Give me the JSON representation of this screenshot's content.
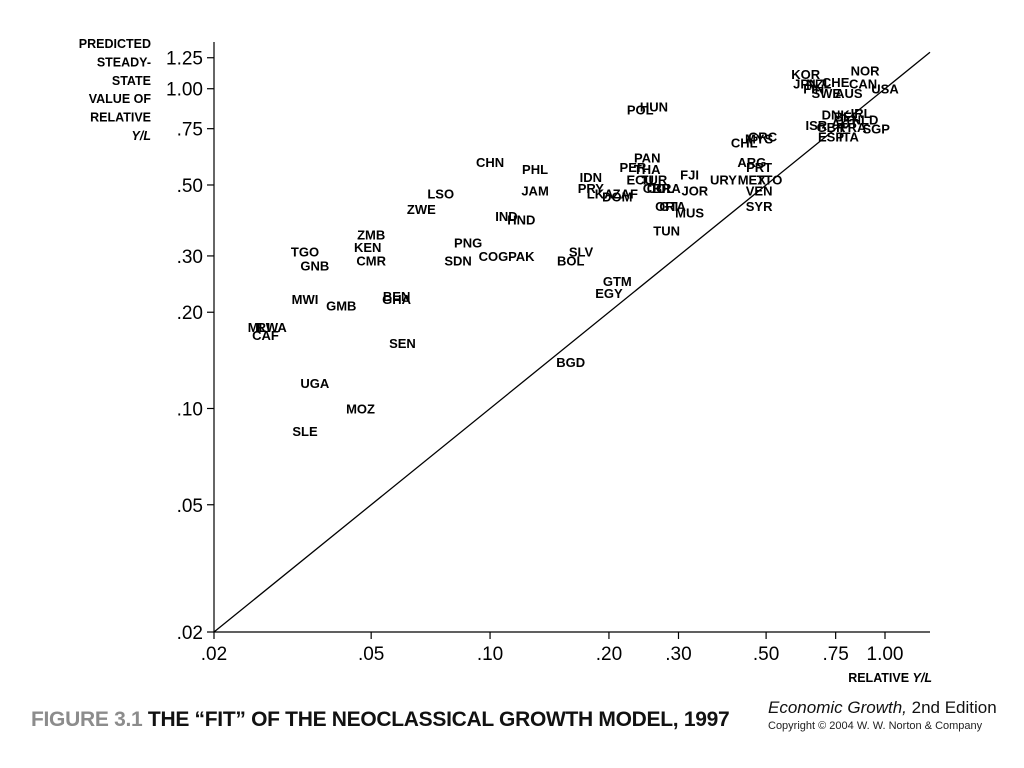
{
  "figure": {
    "label": "FIGURE 3.1",
    "title": "THE “FIT” OF THE NEOCLASSICAL GROWTH MODEL, 1997"
  },
  "credit": {
    "book_title": "Economic Growth,",
    "edition": " 2nd Edition",
    "copyright": "Copyright © 2004 W. W. Norton & Company"
  },
  "chart_data": {
    "type": "scatter",
    "scale": "log",
    "xlim": [
      0.02,
      1.3
    ],
    "ylim": [
      0.02,
      1.4
    ],
    "xlabel": [
      "RELATIVE ",
      "Y/L"
    ],
    "ylabel": [
      "PREDICTED",
      "STEADY-",
      "STATE",
      "VALUE OF",
      "RELATIVE",
      "Y/L"
    ],
    "x_ticks": [
      {
        "value": 0.02,
        "label": ".02"
      },
      {
        "value": 0.05,
        "label": ".05"
      },
      {
        "value": 0.1,
        "label": ".10"
      },
      {
        "value": 0.2,
        "label": ".20"
      },
      {
        "value": 0.3,
        "label": ".30"
      },
      {
        "value": 0.5,
        "label": ".50"
      },
      {
        "value": 0.75,
        "label": ".75"
      },
      {
        "value": 1.0,
        "label": "1.00"
      }
    ],
    "y_ticks": [
      {
        "value": 0.02,
        "label": ".02"
      },
      {
        "value": 0.05,
        "label": ".05"
      },
      {
        "value": 0.1,
        "label": ".10"
      },
      {
        "value": 0.2,
        "label": ".20"
      },
      {
        "value": 0.3,
        "label": ".30"
      },
      {
        "value": 0.5,
        "label": ".50"
      },
      {
        "value": 0.75,
        "label": ".75"
      },
      {
        "value": 1.0,
        "label": "1.00"
      },
      {
        "value": 1.25,
        "label": "1.25"
      }
    ],
    "reference_line": {
      "from": [
        0.02,
        0.02
      ],
      "to": [
        1.3,
        1.3
      ]
    },
    "points": [
      {
        "label": "NOR",
        "x": 0.89,
        "y": 1.14
      },
      {
        "label": "KOR",
        "x": 0.63,
        "y": 1.11
      },
      {
        "label": "JPN",
        "x": 0.63,
        "y": 1.04
      },
      {
        "label": "NZL",
        "x": 0.68,
        "y": 1.04
      },
      {
        "label": "CHE",
        "x": 0.75,
        "y": 1.05
      },
      {
        "label": "CAN",
        "x": 0.88,
        "y": 1.04
      },
      {
        "label": "USA",
        "x": 1.0,
        "y": 1.0
      },
      {
        "label": "FIN",
        "x": 0.66,
        "y": 1.0
      },
      {
        "label": "SWE",
        "x": 0.71,
        "y": 0.97
      },
      {
        "label": "AUS",
        "x": 0.81,
        "y": 0.97
      },
      {
        "label": "DNK",
        "x": 0.75,
        "y": 0.83
      },
      {
        "label": "BEL",
        "x": 0.8,
        "y": 0.82
      },
      {
        "label": "IRL",
        "x": 0.87,
        "y": 0.84
      },
      {
        "label": "ISR",
        "x": 0.67,
        "y": 0.77
      },
      {
        "label": "GBR",
        "x": 0.73,
        "y": 0.76
      },
      {
        "label": "NLD",
        "x": 0.89,
        "y": 0.8
      },
      {
        "label": "FRA",
        "x": 0.83,
        "y": 0.76
      },
      {
        "label": "AUT",
        "x": 0.79,
        "y": 0.78
      },
      {
        "label": "SGP",
        "x": 0.95,
        "y": 0.75
      },
      {
        "label": "ESP",
        "x": 0.73,
        "y": 0.71
      },
      {
        "label": "ITA",
        "x": 0.81,
        "y": 0.71
      },
      {
        "label": "HUN",
        "x": 0.26,
        "y": 0.88
      },
      {
        "label": "POL",
        "x": 0.24,
        "y": 0.86
      },
      {
        "label": "GRC",
        "x": 0.49,
        "y": 0.71
      },
      {
        "label": "MYS",
        "x": 0.48,
        "y": 0.7
      },
      {
        "label": "CHL",
        "x": 0.44,
        "y": 0.68
      },
      {
        "label": "PAN",
        "x": 0.25,
        "y": 0.61
      },
      {
        "label": "ARG",
        "x": 0.46,
        "y": 0.59
      },
      {
        "label": "PRT",
        "x": 0.48,
        "y": 0.57
      },
      {
        "label": "PER",
        "x": 0.23,
        "y": 0.57
      },
      {
        "label": "THA",
        "x": 0.25,
        "y": 0.56
      },
      {
        "label": "CHN",
        "x": 0.1,
        "y": 0.59
      },
      {
        "label": "PHL",
        "x": 0.13,
        "y": 0.56
      },
      {
        "label": "IDN",
        "x": 0.18,
        "y": 0.53
      },
      {
        "label": "FJI",
        "x": 0.32,
        "y": 0.54
      },
      {
        "label": "URY",
        "x": 0.39,
        "y": 0.52
      },
      {
        "label": "MEX",
        "x": 0.46,
        "y": 0.52
      },
      {
        "label": "TTO",
        "x": 0.51,
        "y": 0.52
      },
      {
        "label": "ECU",
        "x": 0.24,
        "y": 0.52
      },
      {
        "label": "TUR",
        "x": 0.26,
        "y": 0.52
      },
      {
        "label": "COL",
        "x": 0.27,
        "y": 0.49
      },
      {
        "label": "CRI",
        "x": 0.26,
        "y": 0.49
      },
      {
        "label": "BRA",
        "x": 0.28,
        "y": 0.49
      },
      {
        "label": "JOR",
        "x": 0.33,
        "y": 0.48
      },
      {
        "label": "VEN",
        "x": 0.48,
        "y": 0.48
      },
      {
        "label": "PRY",
        "x": 0.18,
        "y": 0.49
      },
      {
        "label": "LKA",
        "x": 0.19,
        "y": 0.47
      },
      {
        "label": "ZAF",
        "x": 0.22,
        "y": 0.47
      },
      {
        "label": "DOM",
        "x": 0.21,
        "y": 0.46
      },
      {
        "label": "JAM",
        "x": 0.13,
        "y": 0.48
      },
      {
        "label": "SYR",
        "x": 0.48,
        "y": 0.43
      },
      {
        "label": "GTA",
        "x": 0.29,
        "y": 0.43
      },
      {
        "label": "ORI",
        "x": 0.28,
        "y": 0.43
      },
      {
        "label": "MUS",
        "x": 0.32,
        "y": 0.41
      },
      {
        "label": "LSO",
        "x": 0.075,
        "y": 0.47
      },
      {
        "label": "ZWE",
        "x": 0.067,
        "y": 0.42
      },
      {
        "label": "IND",
        "x": 0.11,
        "y": 0.4
      },
      {
        "label": "HND",
        "x": 0.12,
        "y": 0.39
      },
      {
        "label": "TUN",
        "x": 0.28,
        "y": 0.36
      },
      {
        "label": "ZMB",
        "x": 0.05,
        "y": 0.35
      },
      {
        "label": "KEN",
        "x": 0.049,
        "y": 0.32
      },
      {
        "label": "PNG",
        "x": 0.088,
        "y": 0.33
      },
      {
        "label": "TGO",
        "x": 0.034,
        "y": 0.31
      },
      {
        "label": "CMR",
        "x": 0.05,
        "y": 0.29
      },
      {
        "label": "COG",
        "x": 0.102,
        "y": 0.3
      },
      {
        "label": "PAK",
        "x": 0.12,
        "y": 0.3
      },
      {
        "label": "SLV",
        "x": 0.17,
        "y": 0.31
      },
      {
        "label": "BOL",
        "x": 0.16,
        "y": 0.29
      },
      {
        "label": "SDN",
        "x": 0.083,
        "y": 0.29
      },
      {
        "label": "GNB",
        "x": 0.036,
        "y": 0.28
      },
      {
        "label": "GTM",
        "x": 0.21,
        "y": 0.25
      },
      {
        "label": "EGY",
        "x": 0.2,
        "y": 0.23
      },
      {
        "label": "MWI",
        "x": 0.034,
        "y": 0.22
      },
      {
        "label": "BEN",
        "x": 0.058,
        "y": 0.225
      },
      {
        "label": "GHA",
        "x": 0.058,
        "y": 0.22
      },
      {
        "label": "GMB",
        "x": 0.042,
        "y": 0.21
      },
      {
        "label": "MLI",
        "x": 0.026,
        "y": 0.18
      },
      {
        "label": "RWA",
        "x": 0.028,
        "y": 0.18
      },
      {
        "label": "CAF",
        "x": 0.027,
        "y": 0.17
      },
      {
        "label": "SEN",
        "x": 0.06,
        "y": 0.16
      },
      {
        "label": "BGD",
        "x": 0.16,
        "y": 0.14
      },
      {
        "label": "UGA",
        "x": 0.036,
        "y": 0.12
      },
      {
        "label": "MOZ",
        "x": 0.047,
        "y": 0.1
      },
      {
        "label": "SLE",
        "x": 0.034,
        "y": 0.085
      }
    ]
  }
}
